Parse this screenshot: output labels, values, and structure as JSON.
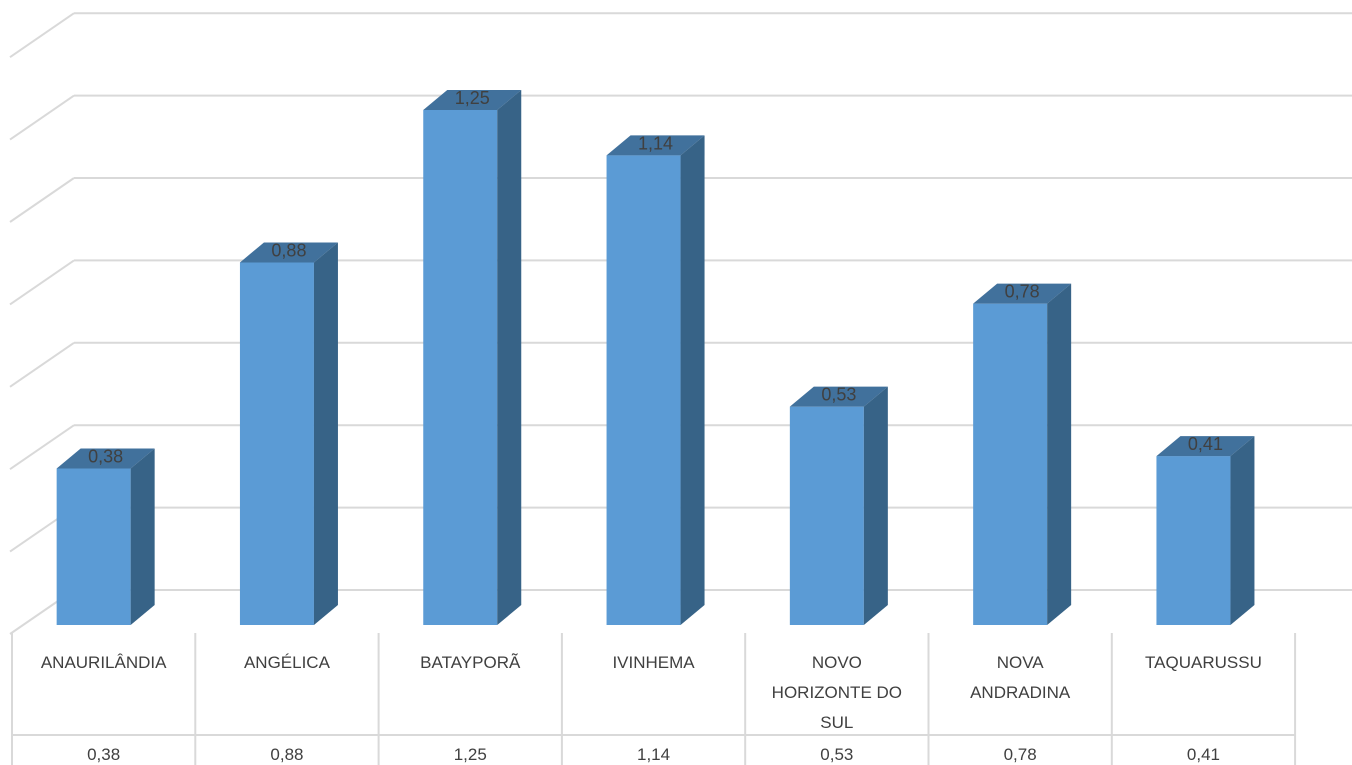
{
  "chart_data": {
    "type": "bar",
    "style": "3d-column-with-data-table",
    "categories": [
      [
        "ANAURILÂNDIA"
      ],
      [
        "ANGÉLICA"
      ],
      [
        "BATAYPORÃ"
      ],
      [
        "IVINHEMA"
      ],
      [
        "NOVO",
        "HORIZONTE DO",
        "SUL"
      ],
      [
        "NOVA",
        "ANDRADINA"
      ],
      [
        "TAQUARUSSU"
      ]
    ],
    "values": [
      0.38,
      0.88,
      1.25,
      1.14,
      0.53,
      0.78,
      0.41
    ],
    "value_labels": [
      "0,38",
      "0,88",
      "1,25",
      "1,14",
      "0,53",
      "0,78",
      "0,41"
    ],
    "ylim": [
      0,
      1.4
    ],
    "grid": true,
    "colors": {
      "front": "#5b9bd5",
      "top": "#41719c",
      "side": "#376387",
      "grid": "#d9d9d9",
      "table_border": "#d9d9d9",
      "text": "#404040"
    }
  }
}
